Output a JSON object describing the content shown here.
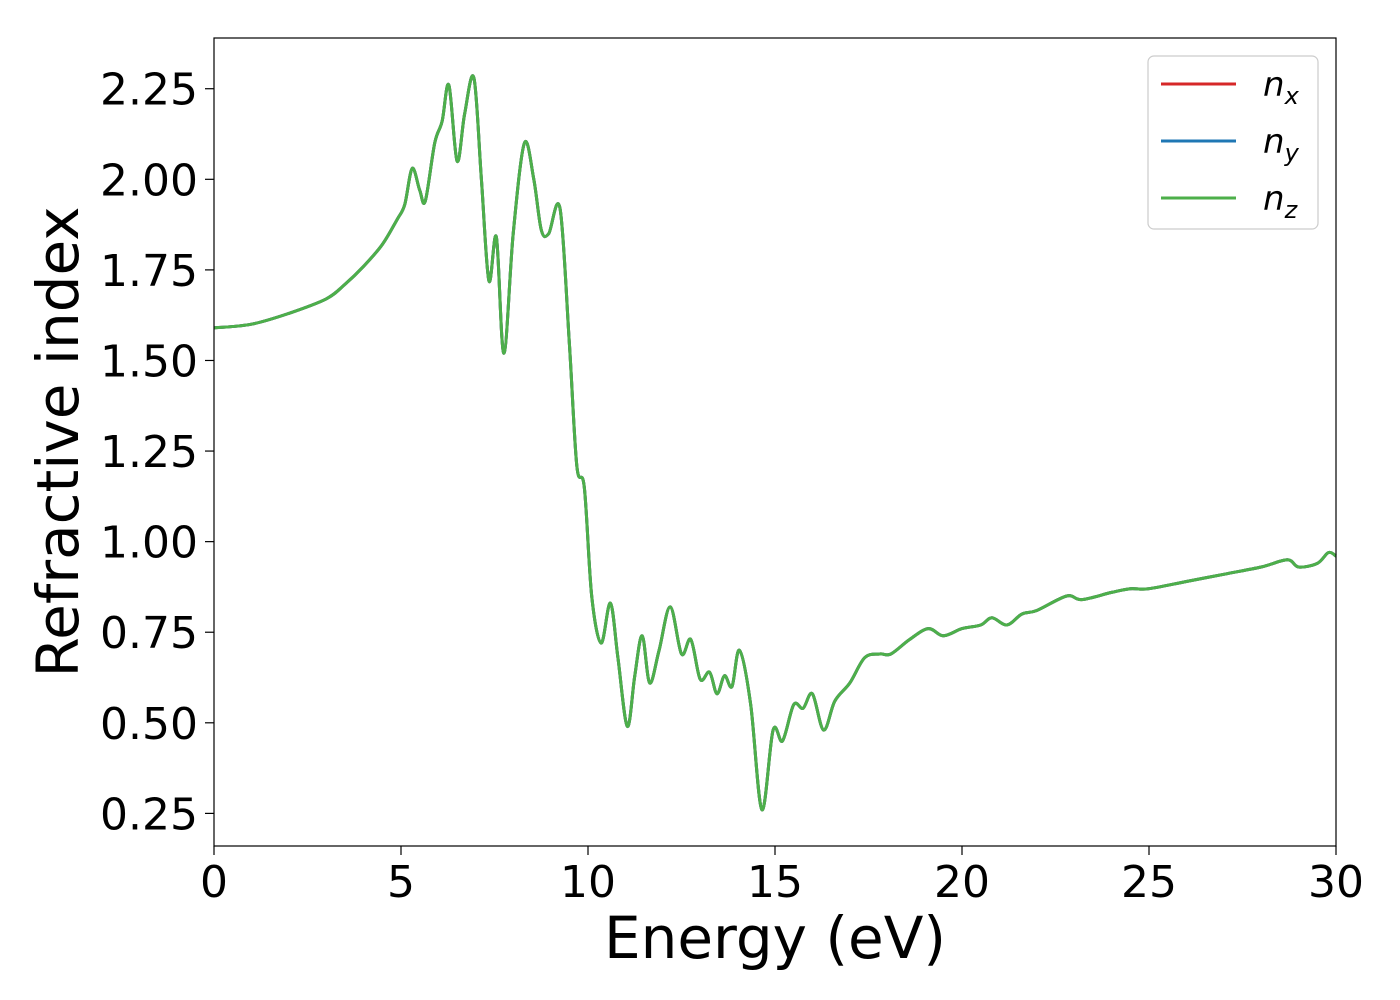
{
  "chart_data": {
    "type": "line",
    "xlabel": "Energy (eV)",
    "ylabel": "Refractive index",
    "xlim": [
      0,
      30
    ],
    "ylim": [
      0.16,
      2.39
    ],
    "xticks": [
      "0",
      "5",
      "10",
      "15",
      "20",
      "25",
      "30"
    ],
    "yticks": [
      "0.25",
      "0.50",
      "0.75",
      "1.00",
      "1.25",
      "1.50",
      "1.75",
      "2.00",
      "2.25"
    ],
    "grid": false,
    "legend_position": "top-right",
    "series": [
      {
        "name": "n",
        "subscript": "x",
        "color": "#d62728"
      },
      {
        "name": "n",
        "subscript": "y",
        "color": "#1f77b4"
      },
      {
        "name": "n",
        "subscript": "z",
        "color": "#4daf4a"
      }
    ],
    "x": [
      0,
      1,
      2,
      3,
      3.5,
      4,
      4.5,
      4.9,
      5.1,
      5.3,
      5.5,
      5.65,
      5.9,
      6.1,
      6.28,
      6.5,
      6.7,
      6.95,
      7.15,
      7.35,
      7.55,
      7.75,
      8.0,
      8.3,
      8.55,
      8.75,
      8.95,
      9.25,
      9.5,
      9.7,
      9.9,
      10.1,
      10.35,
      10.6,
      10.8,
      11.05,
      11.25,
      11.45,
      11.65,
      11.9,
      12.2,
      12.5,
      12.75,
      13.0,
      13.25,
      13.45,
      13.65,
      13.85,
      14.05,
      14.35,
      14.65,
      14.95,
      15.2,
      15.5,
      15.75,
      16.0,
      16.3,
      16.6,
      17.0,
      17.4,
      17.8,
      18.1,
      18.6,
      19.1,
      19.5,
      20.0,
      20.5,
      20.8,
      21.2,
      21.6,
      22.0,
      22.8,
      23.2,
      24.0,
      24.5,
      25.0,
      26.0,
      27.0,
      28.0,
      28.7,
      29.0,
      29.5,
      29.8,
      30.0
    ],
    "values": [
      1.59,
      1.6,
      1.63,
      1.67,
      1.71,
      1.76,
      1.82,
      1.89,
      1.93,
      2.03,
      1.97,
      1.94,
      2.1,
      2.16,
      2.26,
      2.05,
      2.18,
      2.28,
      2.0,
      1.72,
      1.84,
      1.52,
      1.85,
      2.1,
      2.0,
      1.86,
      1.85,
      1.92,
      1.55,
      1.21,
      1.15,
      0.85,
      0.72,
      0.83,
      0.68,
      0.49,
      0.63,
      0.74,
      0.61,
      0.7,
      0.82,
      0.69,
      0.73,
      0.62,
      0.64,
      0.58,
      0.63,
      0.6,
      0.7,
      0.55,
      0.26,
      0.48,
      0.45,
      0.55,
      0.54,
      0.58,
      0.48,
      0.56,
      0.61,
      0.68,
      0.69,
      0.69,
      0.73,
      0.76,
      0.74,
      0.76,
      0.77,
      0.79,
      0.77,
      0.8,
      0.81,
      0.85,
      0.84,
      0.86,
      0.87,
      0.87,
      0.89,
      0.91,
      0.93,
      0.95,
      0.93,
      0.94,
      0.97,
      0.96
    ]
  }
}
